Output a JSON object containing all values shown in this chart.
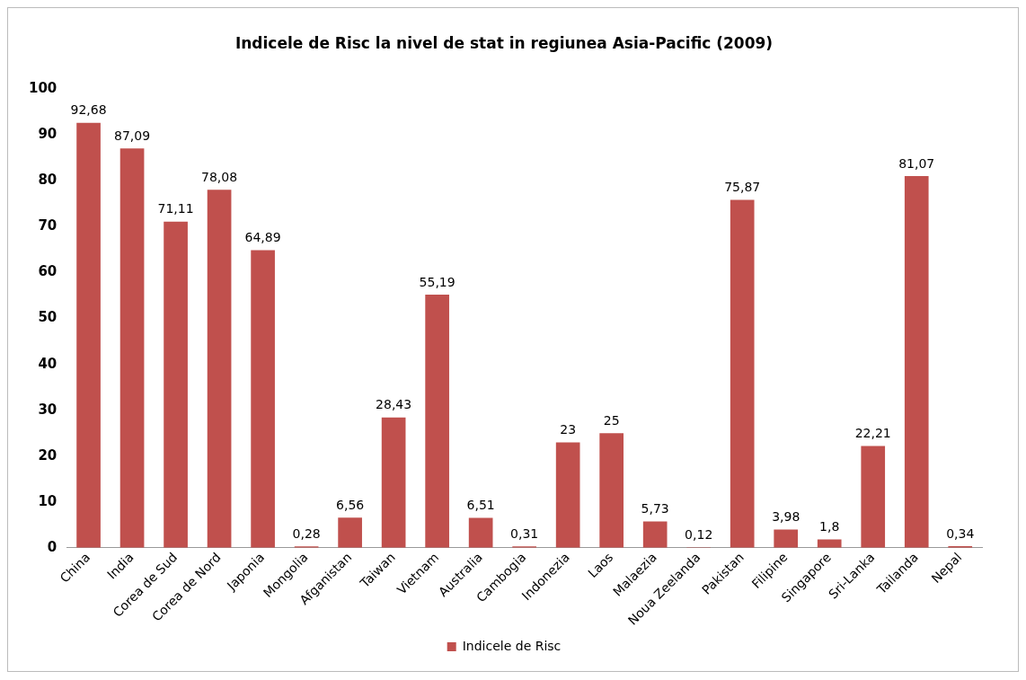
{
  "chart_data": {
    "type": "bar",
    "title": "Indicele de Risc la nivel de stat in regiunea Asia-Pacific (2009)",
    "categories": [
      "China",
      "India",
      "Corea de Sud",
      "Corea de Nord",
      "Japonia",
      "Mongolia",
      "Afganistan",
      "Taiwan",
      "Vietnam",
      "Australia",
      "Cambogia",
      "Indonezia",
      "Laos",
      "Malaezia",
      "Noua Zeelanda",
      "Pakistan",
      "Filipine",
      "Singapore",
      "Sri-Lanka",
      "Tailanda",
      "Nepal"
    ],
    "series": [
      {
        "name": "Indicele de Risc",
        "color": "#c0504d",
        "values": [
          92.68,
          87.09,
          71.11,
          78.08,
          64.89,
          0.28,
          6.56,
          28.43,
          55.19,
          6.51,
          0.31,
          23,
          25,
          5.73,
          0.12,
          75.87,
          3.98,
          1.8,
          22.21,
          81.07,
          0.34
        ],
        "value_labels": [
          "92,68",
          "87,09",
          "71,11",
          "78,08",
          "64,89",
          "0,28",
          "6,56",
          "28,43",
          "55,19",
          "6,51",
          "0,31",
          "23",
          "25",
          "5,73",
          "0,12",
          "75,87",
          "3,98",
          "1,8",
          "22,21",
          "81,07",
          "0,34"
        ]
      }
    ],
    "ylim": [
      0,
      100
    ],
    "yticks": [
      0,
      10,
      20,
      30,
      40,
      50,
      60,
      70,
      80,
      90,
      100
    ],
    "grid": false,
    "legend": "bottom"
  }
}
